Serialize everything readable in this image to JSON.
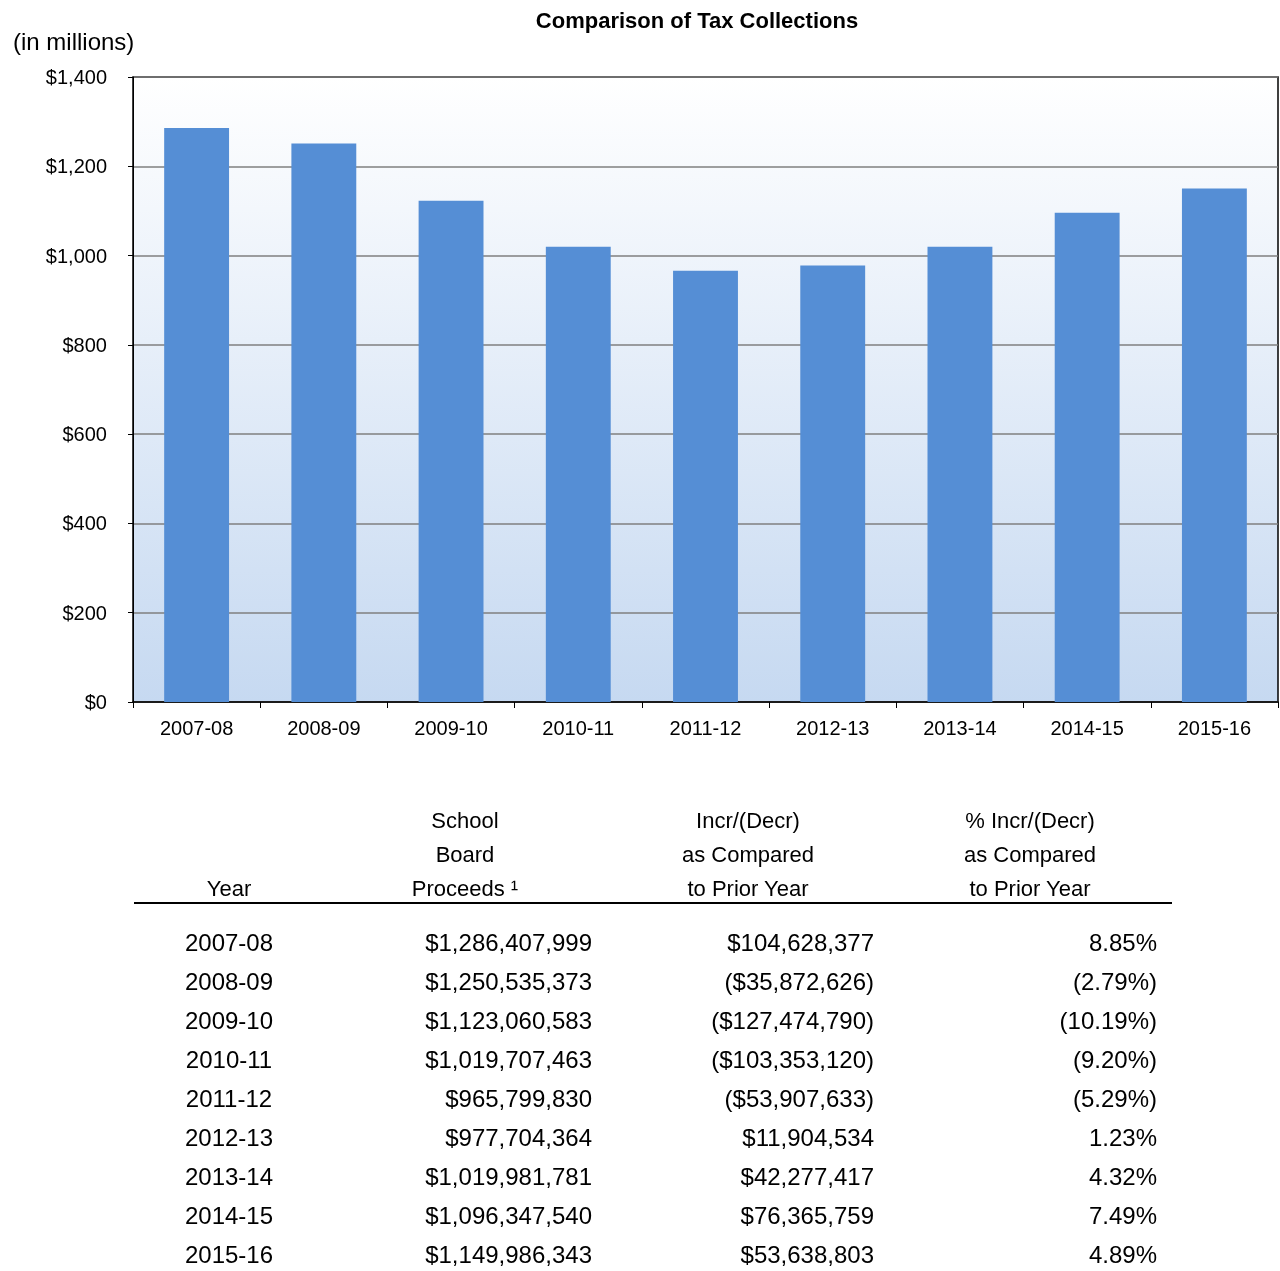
{
  "chart_data": [
    {
      "type": "bar",
      "title": "Comparison of Tax Collections",
      "ylabel": "(in millions)",
      "categories": [
        "2007-08",
        "2008-09",
        "2009-10",
        "2010-11",
        "2011-12",
        "2012-13",
        "2013-14",
        "2014-15",
        "2015-16"
      ],
      "values": [
        1286,
        1251,
        1123,
        1020,
        966,
        978,
        1020,
        1096,
        1150
      ],
      "color": "#558ed5",
      "ylim": [
        0,
        1400
      ],
      "yticks": [
        {
          "value": 0,
          "label": "$0"
        },
        {
          "value": 200,
          "label": "$200"
        },
        {
          "value": 400,
          "label": "$400"
        },
        {
          "value": 600,
          "label": "$600"
        },
        {
          "value": 800,
          "label": "$800"
        },
        {
          "value": 1000,
          "label": "$1,000"
        },
        {
          "value": 1200,
          "label": "$1,200"
        },
        {
          "value": 1400,
          "label": "$1,400"
        }
      ],
      "grid": "y"
    },
    {
      "type": "other",
      "annotations": [
        "Year",
        "School\nBoard\nProceeds ¹",
        "Incr/(Decr)\nas Compared\nto Prior Year",
        "% Incr/(Decr)\nas Compared\nto Prior Year",
        "2007-08",
        "$1,286,407,999",
        "$104,628,377",
        "8.85%",
        "2008-09",
        "$1,250,535,373",
        "($35,872,626)",
        "(2.79%)",
        "2009-10",
        "$1,123,060,583",
        "($127,474,790)",
        "(10.19%)",
        "2010-11",
        "$1,019,707,463",
        "($103,353,120)",
        "(9.20%)",
        "2011-12",
        "$965,799,830",
        "($53,907,633)",
        "(5.29%)",
        "2012-13",
        "$977,704,364",
        "$11,904,534",
        "1.23%",
        "2013-14",
        "$1,019,981,781",
        "$42,277,417",
        "4.32%",
        "2014-15",
        "$1,096,347,540",
        "$76,365,759",
        "7.49%",
        "2015-16",
        "$1,149,986,343",
        "$53,638,803",
        "4.89%"
      ]
    }
  ]
}
